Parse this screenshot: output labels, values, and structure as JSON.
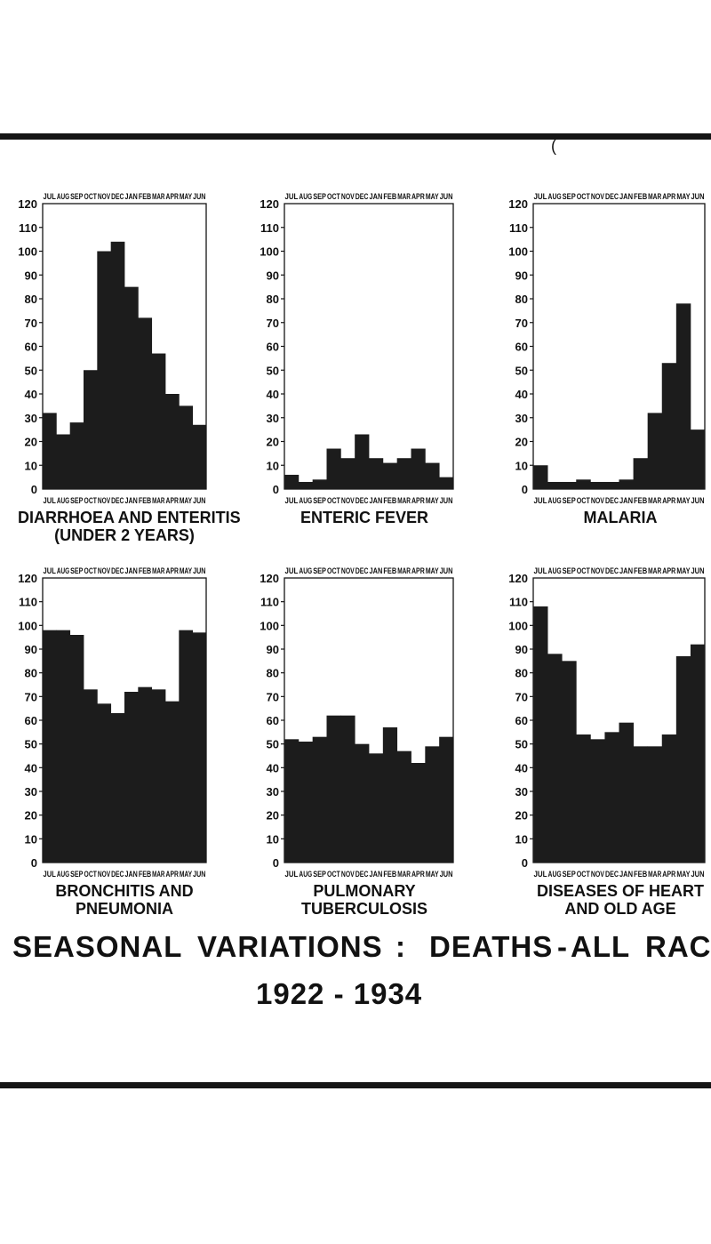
{
  "page": {
    "title_line1_parts": [
      "SEASONAL",
      "VARIATIONS",
      ":",
      "DEATHS",
      "-",
      "ALL",
      "RACE"
    ],
    "title_line2": "1922 - 1934",
    "stray_mark": "(",
    "colors": {
      "ink": "#151515",
      "bars": "#1c1c1c",
      "paper": "#ffffff"
    }
  },
  "shared_axis": {
    "months": [
      "JUL",
      "AUG",
      "SEP",
      "OCT",
      "NOV",
      "DEC",
      "JAN",
      "FEB",
      "MAR",
      "APR",
      "MAY",
      "JUN"
    ],
    "yticks": [
      0,
      10,
      20,
      30,
      40,
      50,
      60,
      70,
      80,
      90,
      100,
      110,
      120
    ]
  },
  "chart_data": [
    {
      "type": "bar",
      "title": "DIARRHOEA AND ENTERITIS\n(UNDER 2 YEARS)",
      "ylim": [
        0,
        120
      ],
      "categories": [
        "JUL",
        "AUG",
        "SEP",
        "OCT",
        "NOV",
        "DEC",
        "JAN",
        "FEB",
        "MAR",
        "APR",
        "MAY",
        "JUN"
      ],
      "values": [
        32,
        23,
        28,
        50,
        100,
        104,
        85,
        72,
        57,
        40,
        35,
        27
      ]
    },
    {
      "type": "bar",
      "title": "ENTERIC FEVER",
      "ylim": [
        0,
        120
      ],
      "categories": [
        "JUL",
        "AUG",
        "SEP",
        "OCT",
        "NOV",
        "DEC",
        "JAN",
        "FEB",
        "MAR",
        "APR",
        "MAY",
        "JUN"
      ],
      "values": [
        6,
        3,
        4,
        17,
        13,
        23,
        13,
        11,
        13,
        17,
        11,
        5
      ]
    },
    {
      "type": "bar",
      "title": "MALARIA",
      "ylim": [
        0,
        120
      ],
      "categories": [
        "JUL",
        "AUG",
        "SEP",
        "OCT",
        "NOV",
        "DEC",
        "JAN",
        "FEB",
        "MAR",
        "APR",
        "MAY",
        "JUN"
      ],
      "values": [
        10,
        3,
        3,
        4,
        3,
        3,
        4,
        13,
        32,
        53,
        78,
        25
      ]
    },
    {
      "type": "bar",
      "title": "BRONCHITIS AND\nPNEUMONIA",
      "ylim": [
        0,
        120
      ],
      "categories": [
        "JUL",
        "AUG",
        "SEP",
        "OCT",
        "NOV",
        "DEC",
        "JAN",
        "FEB",
        "MAR",
        "APR",
        "MAY",
        "JUN"
      ],
      "values": [
        98,
        98,
        96,
        73,
        67,
        63,
        72,
        74,
        73,
        68,
        98,
        97
      ]
    },
    {
      "type": "bar",
      "title": "PULMONARY\nTUBERCULOSIS",
      "ylim": [
        0,
        120
      ],
      "categories": [
        "JUL",
        "AUG",
        "SEP",
        "OCT",
        "NOV",
        "DEC",
        "JAN",
        "FEB",
        "MAR",
        "APR",
        "MAY",
        "JUN"
      ],
      "values": [
        52,
        51,
        53,
        62,
        62,
        50,
        46,
        57,
        47,
        42,
        49,
        53
      ]
    },
    {
      "type": "bar",
      "title": "DISEASES OF HEART\nAND OLD AGE",
      "ylim": [
        0,
        120
      ],
      "categories": [
        "JUL",
        "AUG",
        "SEP",
        "OCT",
        "NOV",
        "DEC",
        "JAN",
        "FEB",
        "MAR",
        "APR",
        "MAY",
        "JUN"
      ],
      "values": [
        108,
        88,
        85,
        54,
        52,
        55,
        59,
        49,
        49,
        54,
        87,
        92
      ]
    }
  ]
}
